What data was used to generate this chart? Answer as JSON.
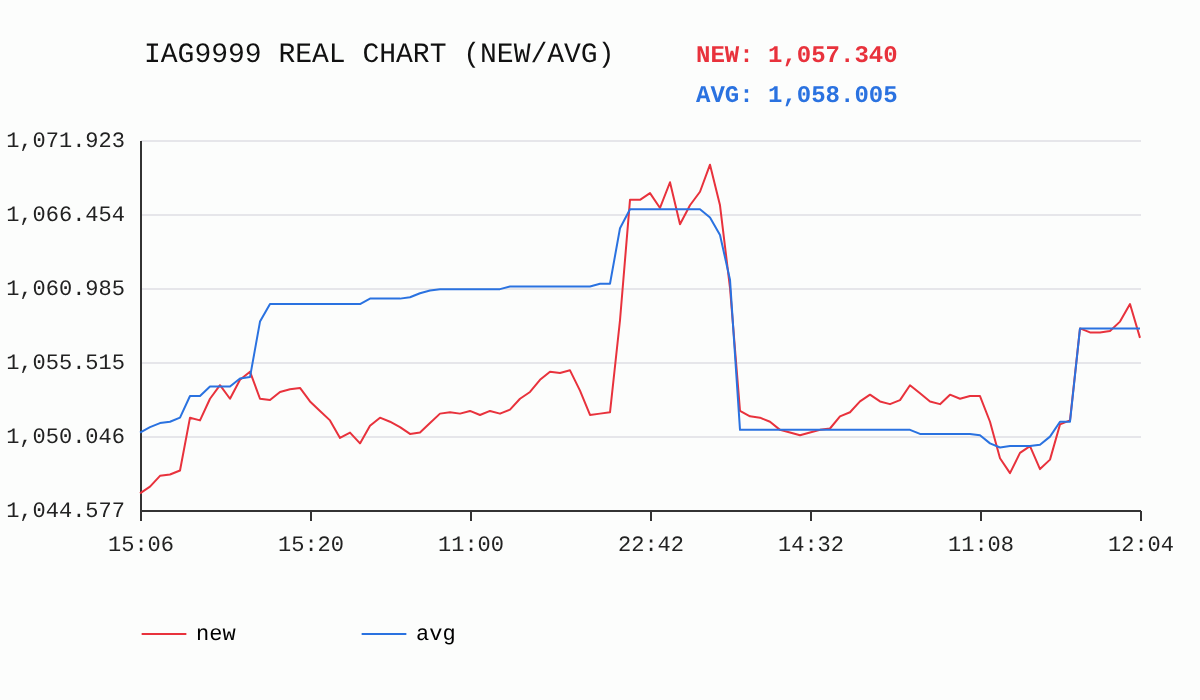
{
  "chart_data": {
    "type": "line",
    "title": "IAG9999 REAL CHART (NEW/AVG)",
    "annotations": [
      "NEW: 1,057.340",
      "AVG: 1,058.005"
    ],
    "categories": [
      "15:06",
      null,
      null,
      null,
      null,
      null,
      null,
      null,
      null,
      null,
      null,
      null,
      null,
      null,
      null,
      null,
      null,
      "15:20",
      null,
      null,
      null,
      null,
      null,
      null,
      null,
      null,
      null,
      null,
      null,
      null,
      null,
      null,
      null,
      "11:00",
      null,
      null,
      null,
      null,
      null,
      null,
      null,
      null,
      null,
      null,
      null,
      null,
      null,
      null,
      null,
      null,
      null,
      "22:42",
      null,
      null,
      null,
      null,
      null,
      null,
      null,
      null,
      null,
      null,
      null,
      null,
      null,
      null,
      null,
      "14:32",
      null,
      null,
      null,
      null,
      null,
      null,
      null,
      null,
      null,
      null,
      null,
      null,
      null,
      null,
      null,
      null,
      "11:08",
      null,
      null,
      null,
      null,
      null,
      null,
      null,
      null,
      null,
      null,
      null,
      null,
      null,
      null,
      null,
      "12:04"
    ],
    "ylim": [
      1044.577,
      1071.923
    ],
    "yticks": [
      {
        "value": 1044.577,
        "label": "1,044.577"
      },
      {
        "value": 1050.046,
        "label": "1,050.046"
      },
      {
        "value": 1055.515,
        "label": "1,055.515"
      },
      {
        "value": 1060.985,
        "label": "1,060.985"
      },
      {
        "value": 1066.454,
        "label": "1,066.454"
      },
      {
        "value": 1071.923,
        "label": "1,071.923"
      }
    ],
    "grid": "y",
    "legend": "bottom",
    "marker": "none",
    "line_style": "solid",
    "series": [
      {
        "name": "new",
        "color": "#e8323c",
        "values": [
          1045.8,
          1046.3,
          1047.1,
          1047.2,
          1047.5,
          1051.4,
          1051.2,
          1052.8,
          1053.8,
          1052.8,
          1054.2,
          1054.8,
          1052.8,
          1052.7,
          1053.3,
          1053.5,
          1053.6,
          1052.6,
          1051.9,
          1051.2,
          1049.9,
          1050.3,
          1049.5,
          1050.8,
          1051.4,
          1051.1,
          1050.7,
          1050.2,
          1050.3,
          1051.0,
          1051.7,
          1051.8,
          1051.7,
          1051.9,
          1051.6,
          1051.9,
          1051.7,
          1052.0,
          1052.8,
          1053.3,
          1054.2,
          1054.8,
          1054.7,
          1054.9,
          1053.4,
          1051.6,
          1051.7,
          1051.8,
          1058.6,
          1067.5,
          1067.5,
          1068.0,
          1066.9,
          1068.8,
          1065.7,
          1067.1,
          1068.1,
          1070.1,
          1067.1,
          1061.0,
          1051.9,
          1051.5,
          1051.4,
          1051.1,
          1050.5,
          1050.3,
          1050.1,
          1050.3,
          1050.5,
          1050.6,
          1051.5,
          1051.8,
          1052.6,
          1053.1,
          1052.6,
          1052.4,
          1052.7,
          1053.8,
          1053.2,
          1052.6,
          1052.4,
          1053.1,
          1052.8,
          1053.0,
          1053.0,
          1051.1,
          1048.4,
          1047.3,
          1048.8,
          1049.3,
          1047.6,
          1048.3,
          1050.9,
          1051.2,
          1058.0,
          1057.7,
          1057.7,
          1057.8,
          1058.5,
          1059.8,
          1057.3
        ]
      },
      {
        "name": "avg",
        "color": "#2a72e0",
        "values": [
          1050.3,
          1050.7,
          1051.0,
          1051.1,
          1051.4,
          1053.0,
          1053.0,
          1053.7,
          1053.7,
          1053.7,
          1054.3,
          1054.4,
          1058.5,
          1059.8,
          1059.8,
          1059.8,
          1059.8,
          1059.8,
          1059.8,
          1059.8,
          1059.8,
          1059.8,
          1059.8,
          1060.2,
          1060.2,
          1060.2,
          1060.2,
          1060.3,
          1060.6,
          1060.8,
          1060.9,
          1060.9,
          1060.9,
          1060.9,
          1060.9,
          1060.9,
          1060.9,
          1061.1,
          1061.1,
          1061.1,
          1061.1,
          1061.1,
          1061.1,
          1061.1,
          1061.1,
          1061.1,
          1061.3,
          1061.3,
          1065.4,
          1066.8,
          1066.8,
          1066.8,
          1066.8,
          1066.8,
          1066.8,
          1066.8,
          1066.8,
          1066.2,
          1064.9,
          1061.6,
          1050.5,
          1050.5,
          1050.5,
          1050.5,
          1050.5,
          1050.5,
          1050.5,
          1050.5,
          1050.5,
          1050.5,
          1050.5,
          1050.5,
          1050.5,
          1050.5,
          1050.5,
          1050.5,
          1050.5,
          1050.5,
          1050.2,
          1050.2,
          1050.2,
          1050.2,
          1050.2,
          1050.2,
          1050.1,
          1049.5,
          1049.2,
          1049.3,
          1049.3,
          1049.3,
          1049.4,
          1050.0,
          1051.1,
          1051.1,
          1058.0,
          1058.0,
          1058.0,
          1058.0,
          1058.0,
          1058.0,
          1058.0
        ]
      }
    ]
  }
}
